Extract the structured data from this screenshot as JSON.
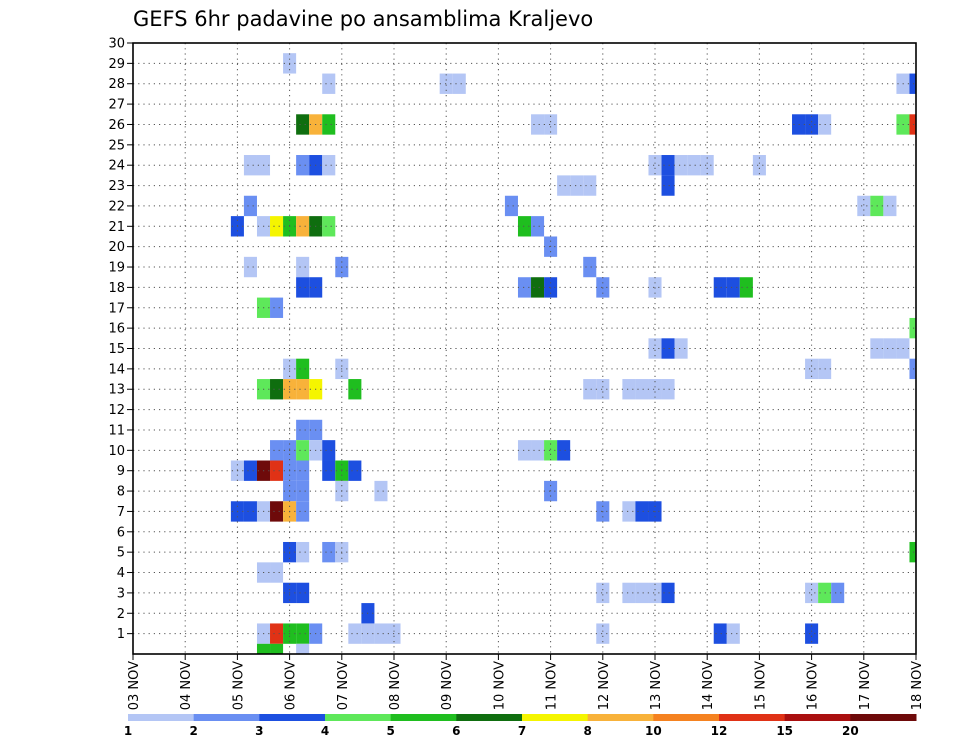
{
  "chart_data": {
    "type": "heatmap",
    "title": "GEFS 6hr padavine po ansamblima Kraljevo",
    "xlabel": "",
    "ylabel": "",
    "x_ticks": [
      "03 NOV",
      "04 NOV",
      "05 NOV",
      "06 NOV",
      "07 NOV",
      "08 NOV",
      "09 NOV",
      "10 NOV",
      "11 NOV",
      "12 NOV",
      "13 NOV",
      "14 NOV",
      "15 NOV",
      "16 NOV",
      "17 NOV",
      "18 NOV"
    ],
    "x_range": [
      0,
      60
    ],
    "y_ticks": [
      1,
      2,
      3,
      4,
      5,
      6,
      7,
      8,
      9,
      10,
      11,
      12,
      13,
      14,
      15,
      16,
      17,
      18,
      19,
      20,
      21,
      22,
      23,
      24,
      25,
      26,
      27,
      28,
      29,
      30
    ],
    "y_range": [
      0,
      30
    ],
    "grid": true,
    "legend": {
      "placement": "bottom",
      "levels": [
        "1",
        "2",
        "3",
        "4",
        "5",
        "6",
        "7",
        "8",
        "10",
        "12",
        "15",
        "20"
      ],
      "colors": [
        "#b4c6f5",
        "#6a8ff2",
        "#1d4fe0",
        "#5ee85a",
        "#1fbe1f",
        "#0f6e0f",
        "#f5f500",
        "#f8b23a",
        "#f58220",
        "#e03216",
        "#aa0f0f",
        "#6e0a0a"
      ]
    },
    "colors": [
      "#b4c6f5",
      "#6a8ff2",
      "#1d4fe0",
      "#5ee85a",
      "#1fbe1f",
      "#0f6e0f",
      "#f5f500",
      "#f8b23a",
      "#f58220",
      "#e03216",
      "#aa0f0f",
      "#6e0a0a"
    ],
    "cells": [
      [
        12,
        29,
        0
      ],
      [
        15,
        28,
        0
      ],
      [
        24,
        28,
        0
      ],
      [
        25,
        28,
        0
      ],
      [
        59,
        28,
        0
      ],
      [
        60,
        28,
        2
      ],
      [
        13,
        26,
        5
      ],
      [
        14,
        26,
        7
      ],
      [
        15,
        26,
        4
      ],
      [
        31,
        26,
        0
      ],
      [
        32,
        26,
        0
      ],
      [
        51,
        26,
        2
      ],
      [
        52,
        26,
        2
      ],
      [
        53,
        26,
        0
      ],
      [
        59,
        26,
        3
      ],
      [
        60,
        26,
        9
      ],
      [
        9,
        24,
        0
      ],
      [
        10,
        24,
        0
      ],
      [
        13,
        24,
        1
      ],
      [
        14,
        24,
        2
      ],
      [
        15,
        24,
        0
      ],
      [
        40,
        24,
        0
      ],
      [
        41,
        24,
        2
      ],
      [
        42,
        24,
        0
      ],
      [
        43,
        24,
        0
      ],
      [
        44,
        24,
        0
      ],
      [
        48,
        24,
        0
      ],
      [
        33,
        23,
        0
      ],
      [
        34,
        23,
        0
      ],
      [
        35,
        23,
        0
      ],
      [
        41,
        23,
        2
      ],
      [
        9,
        22,
        1
      ],
      [
        29,
        22,
        1
      ],
      [
        56,
        22,
        0
      ],
      [
        57,
        22,
        3
      ],
      [
        58,
        22,
        0
      ],
      [
        8,
        21,
        2
      ],
      [
        10,
        21,
        0
      ],
      [
        11,
        21,
        6
      ],
      [
        12,
        21,
        4
      ],
      [
        13,
        21,
        7
      ],
      [
        14,
        21,
        5
      ],
      [
        15,
        21,
        3
      ],
      [
        30,
        21,
        4
      ],
      [
        31,
        21,
        1
      ],
      [
        32,
        20,
        1
      ],
      [
        9,
        19,
        0
      ],
      [
        13,
        19,
        0
      ],
      [
        16,
        19,
        1
      ],
      [
        35,
        19,
        1
      ],
      [
        13,
        18,
        2
      ],
      [
        14,
        18,
        2
      ],
      [
        30,
        18,
        1
      ],
      [
        31,
        18,
        5
      ],
      [
        32,
        18,
        2
      ],
      [
        36,
        18,
        1
      ],
      [
        40,
        18,
        0
      ],
      [
        45,
        18,
        2
      ],
      [
        46,
        18,
        2
      ],
      [
        47,
        18,
        4
      ],
      [
        10,
        17,
        3
      ],
      [
        11,
        17,
        1
      ],
      [
        60,
        16,
        3
      ],
      [
        40,
        15,
        0
      ],
      [
        41,
        15,
        2
      ],
      [
        42,
        15,
        0
      ],
      [
        57,
        15,
        0
      ],
      [
        58,
        15,
        0
      ],
      [
        59,
        15,
        0
      ],
      [
        12,
        14,
        0
      ],
      [
        13,
        14,
        4
      ],
      [
        16,
        14,
        0
      ],
      [
        52,
        14,
        0
      ],
      [
        53,
        14,
        0
      ],
      [
        60,
        14,
        1
      ],
      [
        10,
        13,
        3
      ],
      [
        11,
        13,
        5
      ],
      [
        12,
        13,
        7
      ],
      [
        13,
        13,
        7
      ],
      [
        14,
        13,
        6
      ],
      [
        17,
        13,
        4
      ],
      [
        35,
        13,
        0
      ],
      [
        36,
        13,
        0
      ],
      [
        38,
        13,
        0
      ],
      [
        39,
        13,
        0
      ],
      [
        40,
        13,
        0
      ],
      [
        41,
        13,
        0
      ],
      [
        13,
        11,
        1
      ],
      [
        14,
        11,
        1
      ],
      [
        11,
        10,
        1
      ],
      [
        12,
        10,
        1
      ],
      [
        13,
        10,
        3
      ],
      [
        14,
        10,
        0
      ],
      [
        15,
        10,
        2
      ],
      [
        30,
        10,
        0
      ],
      [
        31,
        10,
        0
      ],
      [
        32,
        10,
        3
      ],
      [
        33,
        10,
        2
      ],
      [
        8,
        9,
        0
      ],
      [
        9,
        9,
        2
      ],
      [
        10,
        9,
        11
      ],
      [
        11,
        9,
        9
      ],
      [
        12,
        9,
        1
      ],
      [
        13,
        9,
        1
      ],
      [
        15,
        9,
        2
      ],
      [
        16,
        9,
        4
      ],
      [
        17,
        9,
        2
      ],
      [
        12,
        8,
        1
      ],
      [
        13,
        8,
        1
      ],
      [
        16,
        8,
        0
      ],
      [
        19,
        8,
        0
      ],
      [
        32,
        8,
        1
      ],
      [
        8,
        7,
        2
      ],
      [
        9,
        7,
        2
      ],
      [
        10,
        7,
        0
      ],
      [
        11,
        7,
        11
      ],
      [
        12,
        7,
        7
      ],
      [
        13,
        7,
        1
      ],
      [
        36,
        7,
        1
      ],
      [
        38,
        7,
        0
      ],
      [
        39,
        7,
        2
      ],
      [
        40,
        7,
        2
      ],
      [
        12,
        5,
        2
      ],
      [
        13,
        5,
        0
      ],
      [
        15,
        5,
        1
      ],
      [
        16,
        5,
        0
      ],
      [
        60,
        5,
        4
      ],
      [
        10,
        4,
        0
      ],
      [
        11,
        4,
        0
      ],
      [
        12,
        3,
        2
      ],
      [
        13,
        3,
        2
      ],
      [
        36,
        3,
        0
      ],
      [
        38,
        3,
        0
      ],
      [
        39,
        3,
        0
      ],
      [
        40,
        3,
        0
      ],
      [
        41,
        3,
        2
      ],
      [
        52,
        3,
        0
      ],
      [
        53,
        3,
        3
      ],
      [
        54,
        3,
        1
      ],
      [
        18,
        2,
        2
      ],
      [
        10,
        1,
        0
      ],
      [
        11,
        1,
        9
      ],
      [
        12,
        1,
        4
      ],
      [
        13,
        1,
        4
      ],
      [
        14,
        1,
        1
      ],
      [
        17,
        1,
        0
      ],
      [
        18,
        1,
        0
      ],
      [
        19,
        1,
        0
      ],
      [
        20,
        1,
        0
      ],
      [
        36,
        1,
        0
      ],
      [
        45,
        1,
        2
      ],
      [
        46,
        1,
        0
      ],
      [
        52,
        1,
        2
      ],
      [
        10,
        0,
        4
      ],
      [
        11,
        0,
        4
      ],
      [
        13,
        0,
        0
      ]
    ]
  }
}
